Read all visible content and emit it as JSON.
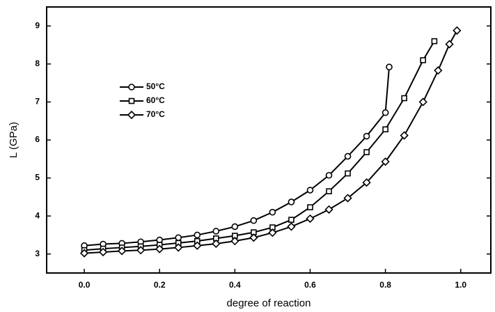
{
  "chart_data": {
    "type": "line",
    "xlabel": "degree of reaction",
    "ylabel": "L (GPa)",
    "xlim": [
      -0.1,
      1.08
    ],
    "ylim": [
      2.5,
      9.5
    ],
    "xticks": [
      {
        "value": 0,
        "label": "0.0"
      },
      0.2,
      0.4,
      0.6,
      0.8,
      {
        "value": 1,
        "label": "1.0"
      }
    ],
    "yticks": [
      3,
      4,
      5,
      6,
      7,
      8,
      9
    ],
    "legend": "upper left",
    "series": [
      {
        "name": "50°C",
        "color": "#000000",
        "marker": "circle",
        "x": [
          0,
          0.05,
          0.1,
          0.15,
          0.2,
          0.25,
          0.3,
          0.35,
          0.4,
          0.45,
          0.5,
          0.55,
          0.6,
          0.65,
          0.7,
          0.75,
          0.8,
          0.81
        ],
        "values": [
          3.22,
          3.26,
          3.28,
          3.32,
          3.37,
          3.43,
          3.5,
          3.6,
          3.72,
          3.88,
          4.1,
          4.37,
          4.68,
          5.07,
          5.57,
          6.1,
          6.72,
          7.92
        ]
      },
      {
        "name": "60°C",
        "color": "#000000",
        "marker": "square",
        "x": [
          0,
          0.05,
          0.1,
          0.15,
          0.2,
          0.25,
          0.3,
          0.35,
          0.4,
          0.45,
          0.5,
          0.55,
          0.6,
          0.65,
          0.7,
          0.75,
          0.8,
          0.85,
          0.9,
          0.93
        ],
        "values": [
          3.1,
          3.14,
          3.17,
          3.2,
          3.24,
          3.29,
          3.34,
          3.41,
          3.48,
          3.57,
          3.7,
          3.9,
          4.23,
          4.65,
          5.12,
          5.68,
          6.28,
          7.1,
          8.1,
          8.6
        ]
      },
      {
        "name": "70°C",
        "color": "#000000",
        "marker": "diamond",
        "x": [
          0,
          0.05,
          0.1,
          0.15,
          0.2,
          0.25,
          0.3,
          0.35,
          0.4,
          0.45,
          0.5,
          0.55,
          0.6,
          0.65,
          0.7,
          0.75,
          0.8,
          0.85,
          0.9,
          0.94,
          0.97,
          0.99
        ],
        "values": [
          3.02,
          3.05,
          3.08,
          3.1,
          3.13,
          3.17,
          3.22,
          3.27,
          3.34,
          3.43,
          3.56,
          3.72,
          3.93,
          4.17,
          4.47,
          4.88,
          5.43,
          6.12,
          7.0,
          7.83,
          8.52,
          8.88
        ]
      }
    ]
  }
}
